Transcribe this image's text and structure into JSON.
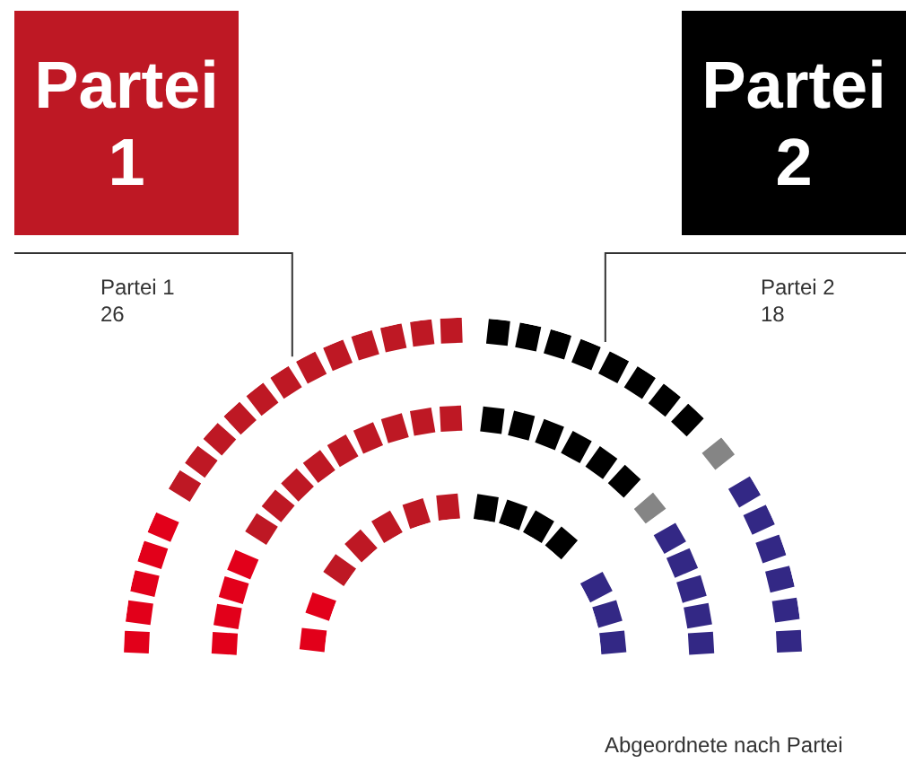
{
  "chart_data": {
    "type": "donut",
    "categories": [
      null,
      "Partei 1",
      "Partei 2",
      null,
      null
    ],
    "values": [
      11,
      26,
      18,
      2,
      14
    ],
    "colors": [
      "#e2001a",
      "#be1824",
      "#000000",
      "#858585",
      "#332885"
    ],
    "value_labels": [
      null,
      "26",
      "18",
      null,
      null
    ],
    "annotations": [
      "Abgeordnete nach Partei"
    ]
  }
}
